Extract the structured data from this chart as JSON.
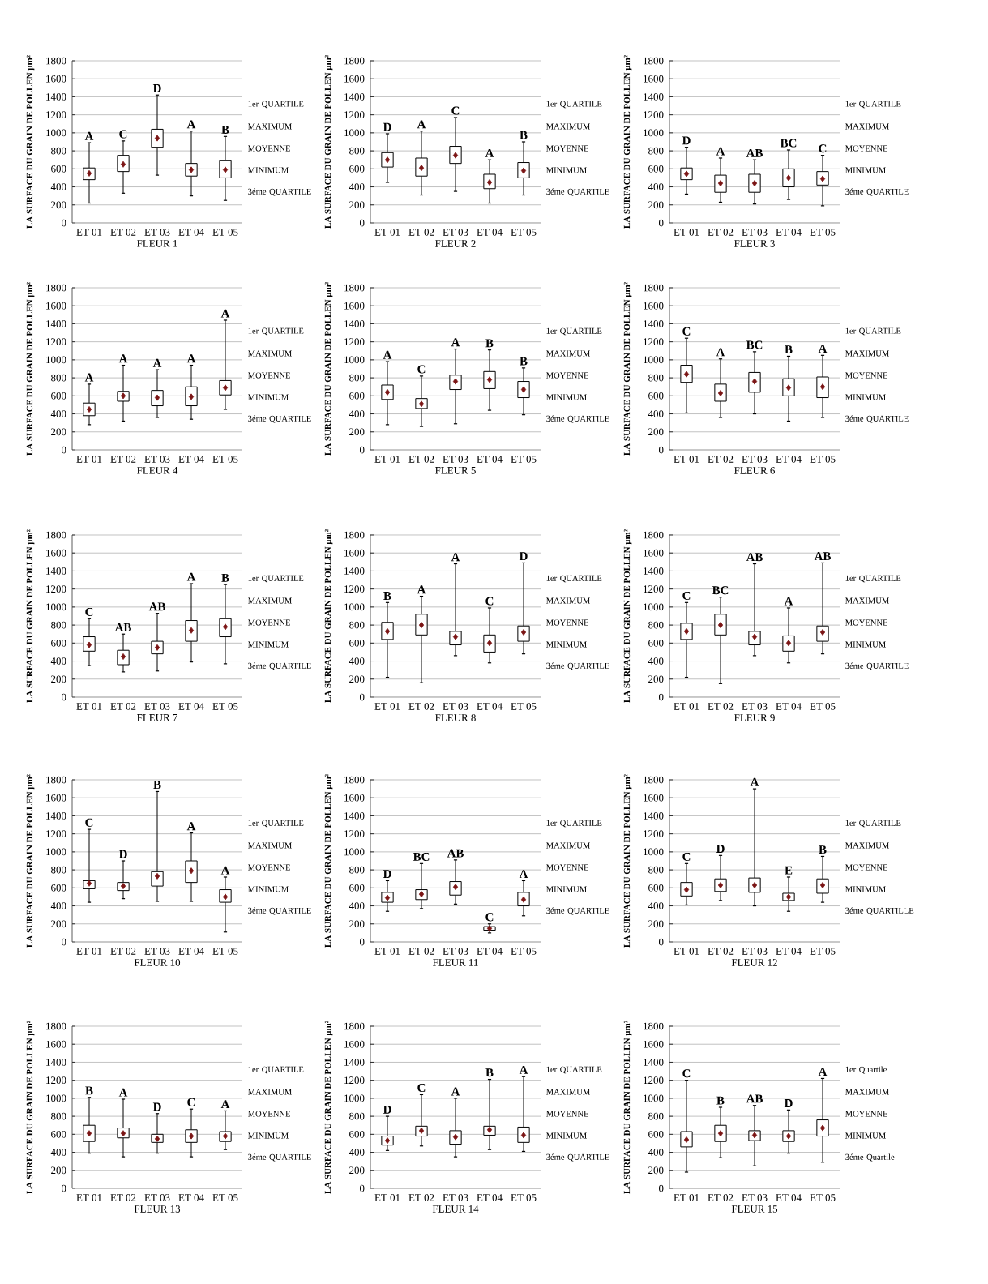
{
  "chart_data": [
    {
      "type": "box",
      "title": "FLEUR 1",
      "ylabel": "LA SURFACE DU GRAIN DE POLLEN µm²",
      "categories": [
        "ET 01",
        "ET 02",
        "ET 03",
        "ET 04",
        "ET 05"
      ],
      "ylim": [
        0,
        1800
      ],
      "yticks": [
        0,
        200,
        400,
        600,
        800,
        1000,
        1200,
        1400,
        1600,
        1800
      ],
      "grid": "y",
      "boxes": [
        {
          "low": 220,
          "q1": 480,
          "q3": 610,
          "high": 890,
          "mean": 550
        },
        {
          "low": 330,
          "q1": 570,
          "q3": 750,
          "high": 910,
          "mean": 650
        },
        {
          "low": 530,
          "q1": 840,
          "q3": 1040,
          "high": 1420,
          "mean": 940
        },
        {
          "low": 300,
          "q1": 520,
          "q3": 660,
          "high": 1020,
          "mean": 590
        },
        {
          "low": 250,
          "q1": 500,
          "q3": 690,
          "high": 960,
          "mean": 590
        }
      ],
      "annotations": [
        {
          "text": "A",
          "x": "ET 01",
          "y": 890
        },
        {
          "text": "C",
          "x": "ET 02",
          "y": 910
        },
        {
          "text": "D",
          "x": "ET 03",
          "y": 1420
        },
        {
          "text": "A",
          "x": "ET 04",
          "y": 1020
        },
        {
          "text": "B",
          "x": "ET 05",
          "y": 960
        },
        "1er QUARTILE",
        "MAXIMUM",
        "MOYENNE",
        "MINIMUM",
        "3éme QUARTILE"
      ]
    },
    {
      "type": "box",
      "title": "FLEUR 2",
      "ylabel": "LA SURFACE DU GRAIN DE POLLEN µm²",
      "categories": [
        "ET 01",
        "ET 02",
        "ET 03",
        "ET 04",
        "ET 05"
      ],
      "ylim": [
        0,
        1800
      ],
      "yticks": [
        0,
        200,
        400,
        600,
        800,
        1000,
        1200,
        1400,
        1600,
        1800
      ],
      "grid": "y",
      "boxes": [
        {
          "low": 450,
          "q1": 620,
          "q3": 780,
          "high": 990,
          "mean": 700
        },
        {
          "low": 310,
          "q1": 520,
          "q3": 720,
          "high": 1020,
          "mean": 610
        },
        {
          "low": 350,
          "q1": 660,
          "q3": 850,
          "high": 1170,
          "mean": 750
        },
        {
          "low": 220,
          "q1": 380,
          "q3": 540,
          "high": 700,
          "mean": 450
        },
        {
          "low": 310,
          "q1": 500,
          "q3": 670,
          "high": 900,
          "mean": 580
        }
      ],
      "annotations": [
        {
          "text": "D",
          "x": "ET 01",
          "y": 990
        },
        {
          "text": "A",
          "x": "ET 02",
          "y": 1020
        },
        {
          "text": "C",
          "x": "ET 03",
          "y": 1170
        },
        {
          "text": "A",
          "x": "ET 04",
          "y": 700
        },
        {
          "text": "B",
          "x": "ET 05",
          "y": 900
        },
        "1er QUARTILE",
        "MAXIMUM",
        "MOYENNE",
        "MINIMUM",
        "3éme QUARTILE"
      ]
    },
    {
      "type": "box",
      "title": "FLEUR 3",
      "ylabel": "LA SURFACE DU GRAIN DE POLLEN µm²",
      "categories": [
        "ET 01",
        "ET 02",
        "ET 03",
        "ET 04",
        "ET 05"
      ],
      "ylim": [
        0,
        1800
      ],
      "yticks": [
        0,
        200,
        400,
        600,
        800,
        1000,
        1200,
        1400,
        1600,
        1800
      ],
      "grid": "y",
      "boxes": [
        {
          "low": 320,
          "q1": 480,
          "q3": 610,
          "high": 840,
          "mean": 545
        },
        {
          "low": 230,
          "q1": 340,
          "q3": 530,
          "high": 720,
          "mean": 440
        },
        {
          "low": 210,
          "q1": 340,
          "q3": 540,
          "high": 700,
          "mean": 440
        },
        {
          "low": 260,
          "q1": 400,
          "q3": 600,
          "high": 810,
          "mean": 500
        },
        {
          "low": 190,
          "q1": 420,
          "q3": 570,
          "high": 750,
          "mean": 490
        }
      ],
      "annotations": [
        {
          "text": "D",
          "x": "ET 01",
          "y": 840
        },
        {
          "text": "A",
          "x": "ET 02",
          "y": 720
        },
        {
          "text": "AB",
          "x": "ET 03",
          "y": 700
        },
        {
          "text": "BC",
          "x": "ET 04",
          "y": 810
        },
        {
          "text": "C",
          "x": "ET 05",
          "y": 750
        },
        "1er QUARTILE",
        "MAXIMUM",
        "MOYENNE",
        "MINIMUM",
        "3éme QUARTILE"
      ]
    },
    {
      "type": "box",
      "title": "FLEUR 4",
      "ylabel": "LA SURFACE DU GRAIN DE POLLEN µm²",
      "categories": [
        "ET 01",
        "ET 02",
        "ET 03",
        "ET 04",
        "ET 05"
      ],
      "ylim": [
        0,
        1800
      ],
      "yticks": [
        0,
        200,
        400,
        600,
        800,
        1000,
        1200,
        1400,
        1600,
        1800
      ],
      "grid": "y",
      "boxes": [
        {
          "low": 280,
          "q1": 380,
          "q3": 520,
          "high": 730,
          "mean": 450
        },
        {
          "low": 320,
          "q1": 540,
          "q3": 650,
          "high": 940,
          "mean": 600
        },
        {
          "low": 360,
          "q1": 490,
          "q3": 660,
          "high": 890,
          "mean": 580
        },
        {
          "low": 340,
          "q1": 490,
          "q3": 700,
          "high": 940,
          "mean": 590
        },
        {
          "low": 450,
          "q1": 610,
          "q3": 770,
          "high": 1440,
          "mean": 690
        }
      ],
      "annotations": [
        {
          "text": "A",
          "x": "ET 01",
          "y": 730
        },
        {
          "text": "A",
          "x": "ET 02",
          "y": 940
        },
        {
          "text": "A",
          "x": "ET 03",
          "y": 890
        },
        {
          "text": "A",
          "x": "ET 04",
          "y": 940
        },
        {
          "text": "A",
          "x": "ET 05",
          "y": 1440
        },
        "1er QUARTILE",
        "MAXIMUM",
        "MOYENNE",
        "MINIMUM",
        "3éme QUARTILE"
      ]
    },
    {
      "type": "box",
      "title": "FLEUR 5",
      "ylabel": "LA SURFACE DU GRAIN DE POLLEN µm²",
      "categories": [
        "ET 01",
        "ET 02",
        "ET 03",
        "ET 04",
        "ET 05"
      ],
      "ylim": [
        0,
        1800
      ],
      "yticks": [
        0,
        200,
        400,
        600,
        800,
        1000,
        1200,
        1400,
        1600,
        1800
      ],
      "grid": "y",
      "boxes": [
        {
          "low": 280,
          "q1": 560,
          "q3": 720,
          "high": 980,
          "mean": 640
        },
        {
          "low": 260,
          "q1": 460,
          "q3": 570,
          "high": 820,
          "mean": 510
        },
        {
          "low": 290,
          "q1": 670,
          "q3": 830,
          "high": 1120,
          "mean": 760
        },
        {
          "low": 440,
          "q1": 680,
          "q3": 870,
          "high": 1110,
          "mean": 780
        },
        {
          "low": 390,
          "q1": 580,
          "q3": 760,
          "high": 910,
          "mean": 670
        }
      ],
      "annotations": [
        {
          "text": "A",
          "x": "ET 01",
          "y": 980
        },
        {
          "text": "C",
          "x": "ET 02",
          "y": 820
        },
        {
          "text": "A",
          "x": "ET 03",
          "y": 1120
        },
        {
          "text": "B",
          "x": "ET 04",
          "y": 1110
        },
        {
          "text": "B",
          "x": "ET 05",
          "y": 910
        },
        "1er QUARTILE",
        "MAXIMUM",
        "MOYENNE",
        "MINIMUM",
        "3éme QUARTILE"
      ]
    },
    {
      "type": "box",
      "title": "FLEUR 6",
      "ylabel": "LA SURFACE DU GRAIN DE POLLEN µm²",
      "categories": [
        "ET 01",
        "ET 02",
        "ET 03",
        "ET 04",
        "ET 05"
      ],
      "ylim": [
        0,
        1800
      ],
      "yticks": [
        0,
        200,
        400,
        600,
        800,
        1000,
        1200,
        1400,
        1600,
        1800
      ],
      "grid": "y",
      "boxes": [
        {
          "low": 410,
          "q1": 750,
          "q3": 940,
          "high": 1240,
          "mean": 840
        },
        {
          "low": 360,
          "q1": 540,
          "q3": 730,
          "high": 1010,
          "mean": 630
        },
        {
          "low": 400,
          "q1": 640,
          "q3": 860,
          "high": 1090,
          "mean": 760
        },
        {
          "low": 320,
          "q1": 600,
          "q3": 790,
          "high": 1040,
          "mean": 690
        },
        {
          "low": 360,
          "q1": 580,
          "q3": 810,
          "high": 1050,
          "mean": 700
        }
      ],
      "annotations": [
        {
          "text": "C",
          "x": "ET 01",
          "y": 1240
        },
        {
          "text": "A",
          "x": "ET 02",
          "y": 1010
        },
        {
          "text": "BC",
          "x": "ET 03",
          "y": 1090
        },
        {
          "text": "B",
          "x": "ET 04",
          "y": 1040
        },
        {
          "text": "A",
          "x": "ET 05",
          "y": 1050
        },
        "1er QUARTILE",
        "MAXIMUM",
        "MOYENNE",
        "MINIMUM",
        "3éme QUARTILE"
      ]
    },
    {
      "type": "box",
      "title": "FLEUR 7",
      "ylabel": "LA SURFACE DU GRAIN DE POLLEN µm²",
      "categories": [
        "ET 01",
        "ET 02",
        "ET 03",
        "ET 04",
        "ET 05"
      ],
      "ylim": [
        0,
        1800
      ],
      "yticks": [
        0,
        200,
        400,
        600,
        800,
        1000,
        1200,
        1400,
        1600,
        1800
      ],
      "grid": "y",
      "boxes": [
        {
          "low": 350,
          "q1": 510,
          "q3": 670,
          "high": 870,
          "mean": 580
        },
        {
          "low": 280,
          "q1": 360,
          "q3": 520,
          "high": 700,
          "mean": 450
        },
        {
          "low": 290,
          "q1": 480,
          "q3": 620,
          "high": 930,
          "mean": 550
        },
        {
          "low": 390,
          "q1": 620,
          "q3": 850,
          "high": 1260,
          "mean": 740
        },
        {
          "low": 370,
          "q1": 670,
          "q3": 870,
          "high": 1250,
          "mean": 780
        }
      ],
      "annotations": [
        {
          "text": "C",
          "x": "ET 01",
          "y": 870
        },
        {
          "text": "AB",
          "x": "ET 02",
          "y": 700
        },
        {
          "text": "AB",
          "x": "ET 03",
          "y": 930
        },
        {
          "text": "A",
          "x": "ET 04",
          "y": 1260
        },
        {
          "text": "B",
          "x": "ET 05",
          "y": 1250
        },
        "1er QUARTILE",
        "MAXIMUM",
        "MOYENNE",
        "MINIMUM",
        "3éme QUARTILE"
      ]
    },
    {
      "type": "box",
      "title": "FLEUR 8",
      "ylabel": "LA SURFACE DU GRAIN DE POLLEN µm²",
      "categories": [
        "ET 01",
        "ET 02",
        "ET 03",
        "ET 04",
        "ET 05"
      ],
      "ylim": [
        0,
        1800
      ],
      "yticks": [
        0,
        200,
        400,
        600,
        800,
        1000,
        1200,
        1400,
        1600,
        1800
      ],
      "grid": "y",
      "boxes": [
        {
          "low": 220,
          "q1": 640,
          "q3": 830,
          "high": 1050,
          "mean": 730
        },
        {
          "low": 160,
          "q1": 690,
          "q3": 920,
          "high": 1120,
          "mean": 800
        },
        {
          "low": 460,
          "q1": 580,
          "q3": 730,
          "high": 1480,
          "mean": 670
        },
        {
          "low": 380,
          "q1": 500,
          "q3": 690,
          "high": 990,
          "mean": 600
        },
        {
          "low": 480,
          "q1": 620,
          "q3": 790,
          "high": 1490,
          "mean": 720
        }
      ],
      "annotations": [
        {
          "text": "B",
          "x": "ET 01",
          "y": 1050
        },
        {
          "text": "A",
          "x": "ET 02",
          "y": 1120
        },
        {
          "text": "A",
          "x": "ET 03",
          "y": 1480
        },
        {
          "text": "C",
          "x": "ET 04",
          "y": 990
        },
        {
          "text": "D",
          "x": "ET 05",
          "y": 1490
        },
        "1er QUARTILE",
        "MAXIMUM",
        "MOYENNE",
        "MINIMUM",
        "3éme QUARTILE"
      ]
    },
    {
      "type": "box",
      "title": "FLEUR 9",
      "ylabel": "LA SURFACE DU GRAIN DE POLLEN µm²",
      "categories": [
        "ET 01",
        "ET 02",
        "ET 03",
        "ET 04",
        "ET 05"
      ],
      "ylim": [
        0,
        1800
      ],
      "yticks": [
        0,
        200,
        400,
        600,
        800,
        1000,
        1200,
        1400,
        1600,
        1800
      ],
      "grid": "y",
      "boxes": [
        {
          "low": 220,
          "q1": 640,
          "q3": 820,
          "high": 1050,
          "mean": 730
        },
        {
          "low": 150,
          "q1": 690,
          "q3": 920,
          "high": 1110,
          "mean": 800
        },
        {
          "low": 460,
          "q1": 580,
          "q3": 730,
          "high": 1480,
          "mean": 670
        },
        {
          "low": 380,
          "q1": 510,
          "q3": 680,
          "high": 990,
          "mean": 600
        },
        {
          "low": 480,
          "q1": 620,
          "q3": 790,
          "high": 1490,
          "mean": 720
        }
      ],
      "annotations": [
        {
          "text": "C",
          "x": "ET 01",
          "y": 1050
        },
        {
          "text": "BC",
          "x": "ET 02",
          "y": 1110
        },
        {
          "text": "AB",
          "x": "ET 03",
          "y": 1480
        },
        {
          "text": "A",
          "x": "ET 04",
          "y": 990
        },
        {
          "text": "AB",
          "x": "ET 05",
          "y": 1490
        },
        "1er QUARTILE",
        "MAXIMUM",
        "MOYENNE",
        "MINIMUM",
        "3éme QUARTILE"
      ]
    },
    {
      "type": "box",
      "title": "FLEUR 10",
      "ylabel": "LA SURFACE DU GRAIN DE POLLEN µm²",
      "categories": [
        "ET 01",
        "ET 02",
        "ET 03",
        "ET 04",
        "ET 05"
      ],
      "ylim": [
        0,
        1800
      ],
      "yticks": [
        0,
        200,
        400,
        600,
        800,
        1000,
        1200,
        1400,
        1600,
        1800
      ],
      "grid": "y",
      "boxes": [
        {
          "low": 440,
          "q1": 590,
          "q3": 680,
          "high": 1250,
          "mean": 650
        },
        {
          "low": 480,
          "q1": 570,
          "q3": 660,
          "high": 900,
          "mean": 620
        },
        {
          "low": 450,
          "q1": 620,
          "q3": 780,
          "high": 1670,
          "mean": 730
        },
        {
          "low": 450,
          "q1": 660,
          "q3": 900,
          "high": 1210,
          "mean": 790
        },
        {
          "low": 110,
          "q1": 440,
          "q3": 580,
          "high": 720,
          "mean": 500
        }
      ],
      "annotations": [
        {
          "text": "C",
          "x": "ET 01",
          "y": 1250
        },
        {
          "text": "D",
          "x": "ET 02",
          "y": 900
        },
        {
          "text": "B",
          "x": "ET 03",
          "y": 1670
        },
        {
          "text": "A",
          "x": "ET 04",
          "y": 1210
        },
        {
          "text": "A",
          "x": "ET 05",
          "y": 720
        },
        "1er QUARTILE",
        "MAXIMUM",
        "MOYENNE",
        "MINIMUM",
        "3éme QUARTILE"
      ]
    },
    {
      "type": "box",
      "title": "FLEUR 11",
      "ylabel": "LA SURFACE DU GRAIN DE POLLEN µm²",
      "categories": [
        "ET 01",
        "ET 02",
        "ET 03",
        "ET 04",
        "ET 05"
      ],
      "ylim": [
        0,
        1800
      ],
      "yticks": [
        0,
        200,
        400,
        600,
        800,
        1000,
        1200,
        1400,
        1600,
        1800
      ],
      "grid": "y",
      "boxes": [
        {
          "low": 340,
          "q1": 440,
          "q3": 550,
          "high": 680,
          "mean": 490
        },
        {
          "low": 370,
          "q1": 470,
          "q3": 580,
          "high": 870,
          "mean": 530
        },
        {
          "low": 420,
          "q1": 520,
          "q3": 670,
          "high": 910,
          "mean": 610
        },
        {
          "low": 100,
          "q1": 130,
          "q3": 170,
          "high": 200,
          "mean": 150
        },
        {
          "low": 290,
          "q1": 400,
          "q3": 550,
          "high": 680,
          "mean": 470
        }
      ],
      "annotations": [
        {
          "text": "D",
          "x": "ET 01",
          "y": 680
        },
        {
          "text": "BC",
          "x": "ET 02",
          "y": 870
        },
        {
          "text": "AB",
          "x": "ET 03",
          "y": 910
        },
        {
          "text": "C",
          "x": "ET 04",
          "y": 200
        },
        {
          "text": "A",
          "x": "ET 05",
          "y": 680
        },
        "1er QUARTILE",
        "MAXIMUM",
        "MOYENNE",
        "MINIMUM",
        "3éme QUARTILE"
      ]
    },
    {
      "type": "box",
      "title": "FLEUR 12",
      "ylabel": "LA SURFACE DU GRAIN DE POLLEN µm²",
      "categories": [
        "ET 01",
        "ET 02",
        "ET 03",
        "ET 04",
        "ET 05"
      ],
      "ylim": [
        0,
        1800
      ],
      "yticks": [
        0,
        200,
        400,
        600,
        800,
        1000,
        1200,
        1400,
        1600,
        1800
      ],
      "grid": "y",
      "boxes": [
        {
          "low": 410,
          "q1": 510,
          "q3": 660,
          "high": 870,
          "mean": 580
        },
        {
          "low": 460,
          "q1": 560,
          "q3": 700,
          "high": 960,
          "mean": 630
        },
        {
          "low": 400,
          "q1": 550,
          "q3": 710,
          "high": 1700,
          "mean": 630
        },
        {
          "low": 340,
          "q1": 460,
          "q3": 540,
          "high": 720,
          "mean": 500
        },
        {
          "low": 440,
          "q1": 540,
          "q3": 700,
          "high": 950,
          "mean": 630
        }
      ],
      "annotations": [
        {
          "text": "C",
          "x": "ET 01",
          "y": 870
        },
        {
          "text": "D",
          "x": "ET 02",
          "y": 960
        },
        {
          "text": "A",
          "x": "ET 03",
          "y": 1700
        },
        {
          "text": "E",
          "x": "ET 04",
          "y": 720
        },
        {
          "text": "B",
          "x": "ET 05",
          "y": 950
        },
        "1er QUARTILE",
        "MAXIMUM",
        "MOYENNE",
        "MINIMUM",
        "3éme QUARTILLE"
      ]
    },
    {
      "type": "box",
      "title": "FLEUR 13",
      "ylabel": "LA SURFACE DU GRAIN DE POLLEN µm²",
      "categories": [
        "ET 01",
        "ET 02",
        "ET 03",
        "ET 04",
        "ET 05"
      ],
      "ylim": [
        0,
        1800
      ],
      "yticks": [
        0,
        200,
        400,
        600,
        800,
        1000,
        1200,
        1400,
        1600,
        1800
      ],
      "grid": "y",
      "boxes": [
        {
          "low": 390,
          "q1": 520,
          "q3": 700,
          "high": 1010,
          "mean": 610
        },
        {
          "low": 350,
          "q1": 560,
          "q3": 670,
          "high": 990,
          "mean": 610
        },
        {
          "low": 390,
          "q1": 510,
          "q3": 600,
          "high": 830,
          "mean": 550
        },
        {
          "low": 350,
          "q1": 510,
          "q3": 650,
          "high": 880,
          "mean": 580
        },
        {
          "low": 430,
          "q1": 520,
          "q3": 630,
          "high": 860,
          "mean": 580
        }
      ],
      "annotations": [
        {
          "text": "B",
          "x": "ET 01",
          "y": 1010
        },
        {
          "text": "A",
          "x": "ET 02",
          "y": 990
        },
        {
          "text": "D",
          "x": "ET 03",
          "y": 830
        },
        {
          "text": "C",
          "x": "ET 04",
          "y": 880
        },
        {
          "text": "A",
          "x": "ET 05",
          "y": 860
        },
        "1er QUARTILE",
        "MAXIMUM",
        "MOYENNE",
        "MINIMUM",
        "3éme QUARTILE"
      ]
    },
    {
      "type": "box",
      "title": "FLEUR 14",
      "ylabel": "LA SURFACE DU GRAIN DE POLLEN µm²",
      "categories": [
        "ET 01",
        "ET 02",
        "ET 03",
        "ET 04",
        "ET 05"
      ],
      "ylim": [
        0,
        1800
      ],
      "yticks": [
        0,
        200,
        400,
        600,
        800,
        1000,
        1200,
        1400,
        1600,
        1800
      ],
      "grid": "y",
      "boxes": [
        {
          "low": 420,
          "q1": 480,
          "q3": 580,
          "high": 800,
          "mean": 530
        },
        {
          "low": 470,
          "q1": 580,
          "q3": 690,
          "high": 1040,
          "mean": 640
        },
        {
          "low": 350,
          "q1": 490,
          "q3": 640,
          "high": 1000,
          "mean": 570
        },
        {
          "low": 430,
          "q1": 590,
          "q3": 690,
          "high": 1210,
          "mean": 650
        },
        {
          "low": 410,
          "q1": 510,
          "q3": 680,
          "high": 1240,
          "mean": 590
        }
      ],
      "annotations": [
        {
          "text": "D",
          "x": "ET 01",
          "y": 800
        },
        {
          "text": "C",
          "x": "ET 02",
          "y": 1040
        },
        {
          "text": "A",
          "x": "ET 03",
          "y": 1000
        },
        {
          "text": "B",
          "x": "ET 04",
          "y": 1210
        },
        {
          "text": "A",
          "x": "ET 05",
          "y": 1240
        },
        "1er QUARTILE",
        "MAXIMUM",
        "MOYENNE",
        "MINIMUM",
        "3éme QUARTILE"
      ]
    },
    {
      "type": "box",
      "title": "FLEUR 15",
      "ylabel": "LA SURFACE DU GRAIN DE POLLEN µm²",
      "categories": [
        "ET 01",
        "ET 02",
        "ET 03",
        "ET 04",
        "ET 05"
      ],
      "ylim": [
        0,
        1800
      ],
      "yticks": [
        0,
        200,
        400,
        600,
        800,
        1000,
        1200,
        1400,
        1600,
        1800
      ],
      "grid": "y",
      "boxes": [
        {
          "low": 180,
          "q1": 460,
          "q3": 630,
          "high": 1200,
          "mean": 540
        },
        {
          "low": 340,
          "q1": 520,
          "q3": 700,
          "high": 900,
          "mean": 610
        },
        {
          "low": 250,
          "q1": 530,
          "q3": 640,
          "high": 920,
          "mean": 590
        },
        {
          "low": 390,
          "q1": 520,
          "q3": 640,
          "high": 870,
          "mean": 580
        },
        {
          "low": 290,
          "q1": 580,
          "q3": 760,
          "high": 1220,
          "mean": 670
        }
      ],
      "annotations": [
        {
          "text": "C",
          "x": "ET 01",
          "y": 1200
        },
        {
          "text": "B",
          "x": "ET 02",
          "y": 900
        },
        {
          "text": "AB",
          "x": "ET 03",
          "y": 920
        },
        {
          "text": "D",
          "x": "ET 04",
          "y": 870
        },
        {
          "text": "A",
          "x": "ET 05",
          "y": 1220
        },
        "1er Quartile",
        "MAXIMUM",
        "MOYENNE",
        "MINIMUM",
        "3éme Quartile"
      ]
    }
  ]
}
